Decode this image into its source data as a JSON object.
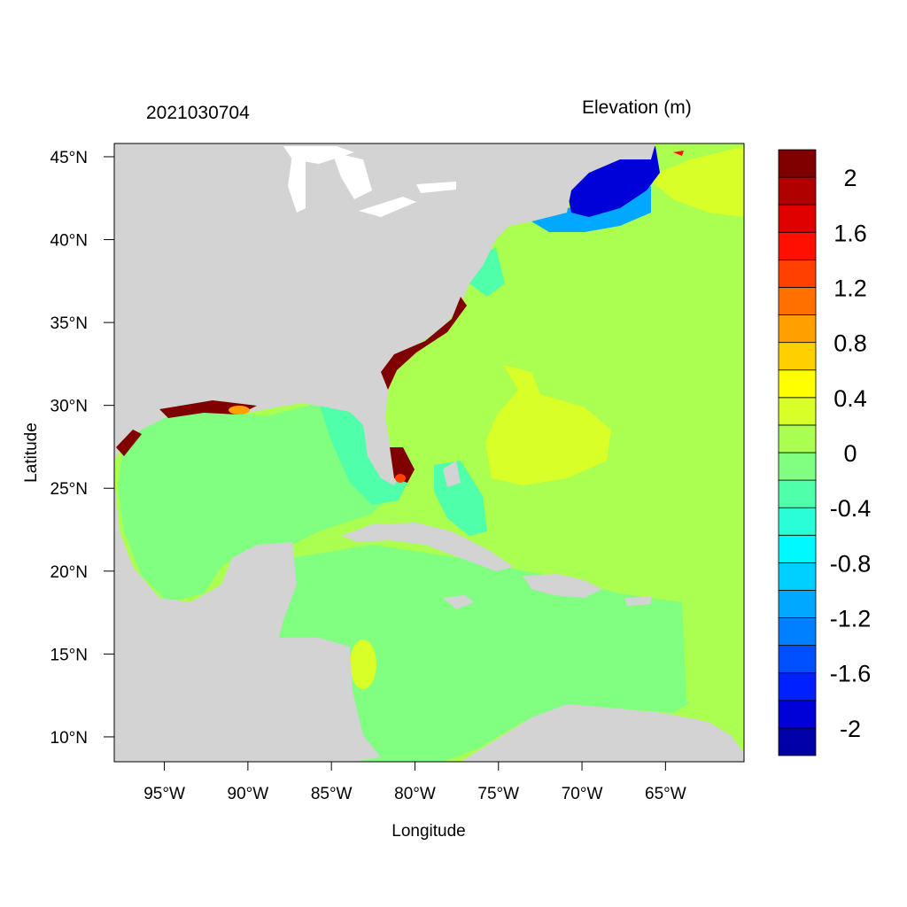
{
  "header": {
    "date_label": "2021030704",
    "variable_label": "Elevation (m)"
  },
  "axes": {
    "xlabel": "Longitude",
    "ylabel": "Latitude",
    "lon_range": [
      -98,
      -60.3
    ],
    "lat_range": [
      8.5,
      45.8
    ],
    "x_ticks": [
      {
        "value": -95,
        "label": "95°W"
      },
      {
        "value": -90,
        "label": "90°W"
      },
      {
        "value": -85,
        "label": "85°W"
      },
      {
        "value": -80,
        "label": "80°W"
      },
      {
        "value": -75,
        "label": "75°W"
      },
      {
        "value": -70,
        "label": "70°W"
      },
      {
        "value": -65,
        "label": "65°W"
      }
    ],
    "y_ticks": [
      {
        "value": 45,
        "label": "45°N"
      },
      {
        "value": 40,
        "label": "40°N"
      },
      {
        "value": 35,
        "label": "35°N"
      },
      {
        "value": 30,
        "label": "30°N"
      },
      {
        "value": 25,
        "label": "25°N"
      },
      {
        "value": 20,
        "label": "20°N"
      },
      {
        "value": 15,
        "label": "15°N"
      },
      {
        "value": 10,
        "label": "10°N"
      }
    ]
  },
  "colorbar": {
    "colors": [
      "#0000a8",
      "#0000d8",
      "#0020ff",
      "#0050ff",
      "#0080ff",
      "#00a8ff",
      "#00d0ff",
      "#00f8ff",
      "#28ffd8",
      "#50ffaa",
      "#80ff80",
      "#aaff50",
      "#d8ff28",
      "#ffff00",
      "#ffd000",
      "#ffa000",
      "#ff7000",
      "#ff4000",
      "#ff1000",
      "#e00000",
      "#b00000",
      "#800000"
    ],
    "labels": [
      "-2",
      "-1.6",
      "-1.2",
      "-0.8",
      "-0.4",
      "0",
      "0.4",
      "0.8",
      "1.2",
      "1.6",
      "2"
    ]
  },
  "map_colors": {
    "land": "#d3d3d3",
    "lakes": "#ffffff",
    "open_ocean": "#aaff50",
    "caribbean": "#80ff80",
    "sargasso_high": "#d8ff28",
    "shelf_low": "#50ffaa",
    "gulf_of_maine": "#0000d8",
    "surge_high": "#800000"
  }
}
